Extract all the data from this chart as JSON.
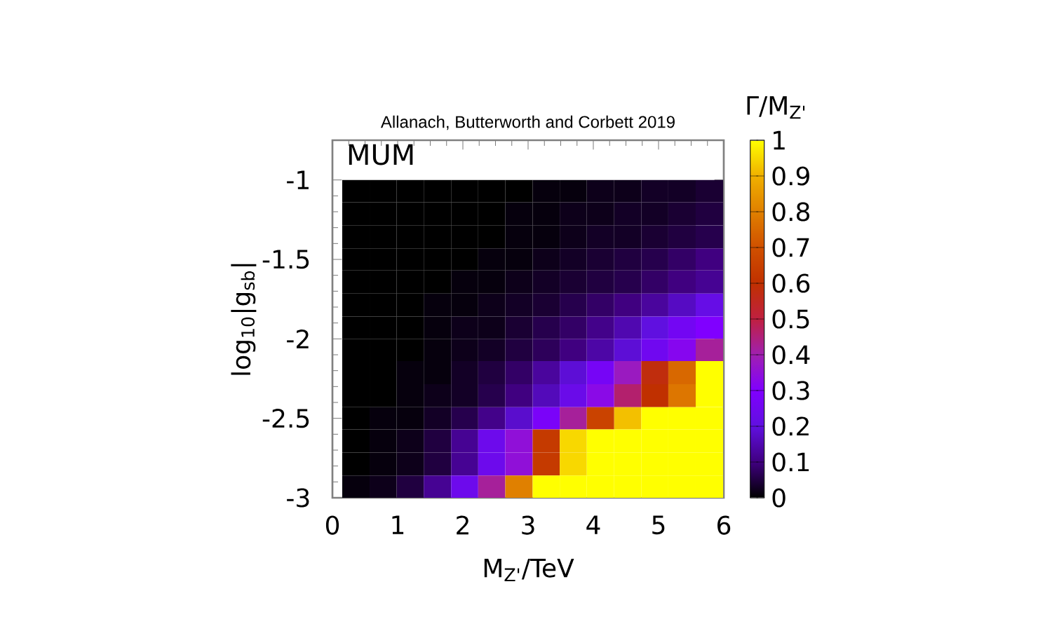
{
  "chart_data": {
    "type": "heatmap",
    "title": "Allanach, Butterworth and Corbett 2019",
    "xlabel": "M$_{Z'}$/TeV",
    "ylabel": "log$_{10}$|g$_{sb}$|",
    "clabel": "Γ/M$_{Z'}$",
    "annotations": [
      "MUM"
    ],
    "x": [
      0.36,
      0.78,
      1.19,
      1.61,
      2.03,
      2.44,
      2.86,
      3.28,
      3.69,
      4.11,
      4.53,
      4.94,
      5.36,
      5.78
    ],
    "y": [
      -1.07,
      -1.21,
      -1.36,
      -1.5,
      -1.64,
      -1.79,
      -1.93,
      -2.07,
      -2.21,
      -2.36,
      -2.5,
      -2.64,
      -2.79,
      -2.93
    ],
    "cells": [
      [
        0,
        0,
        0,
        0,
        0,
        0,
        0,
        0.01,
        0.01,
        0.02,
        0.02,
        0.03,
        0.03,
        0.04
      ],
      [
        0,
        0,
        0,
        0,
        0,
        0,
        0.01,
        0.01,
        0.02,
        0.02,
        0.03,
        0.03,
        0.04,
        0.05
      ],
      [
        0,
        0,
        0,
        0,
        0,
        0,
        0.01,
        0.01,
        0.02,
        0.03,
        0.03,
        0.04,
        0.05,
        0.06
      ],
      [
        0,
        0,
        0,
        0,
        0,
        0.01,
        0.01,
        0.02,
        0.03,
        0.04,
        0.05,
        0.06,
        0.08,
        0.1
      ],
      [
        0,
        0,
        0,
        0,
        0.01,
        0.01,
        0.02,
        0.03,
        0.04,
        0.05,
        0.06,
        0.08,
        0.1,
        0.12
      ],
      [
        0,
        0,
        0,
        0.01,
        0.01,
        0.02,
        0.03,
        0.04,
        0.06,
        0.08,
        0.1,
        0.13,
        0.17,
        0.22
      ],
      [
        0,
        0,
        0,
        0.01,
        0.02,
        0.02,
        0.04,
        0.06,
        0.08,
        0.11,
        0.15,
        0.2,
        0.26,
        0.3
      ],
      [
        0,
        0,
        0,
        0.01,
        0.02,
        0.03,
        0.05,
        0.07,
        0.1,
        0.14,
        0.19,
        0.25,
        0.32,
        0.42
      ],
      [
        0,
        0,
        0.01,
        0.01,
        0.03,
        0.05,
        0.08,
        0.13,
        0.19,
        0.27,
        0.38,
        0.58,
        0.75,
        1
      ],
      [
        0,
        0,
        0.01,
        0.02,
        0.03,
        0.06,
        0.1,
        0.16,
        0.23,
        0.33,
        0.46,
        0.6,
        0.78,
        1
      ],
      [
        0,
        0.01,
        0.01,
        0.03,
        0.06,
        0.11,
        0.18,
        0.28,
        0.42,
        0.66,
        0.92,
        1,
        1,
        1
      ],
      [
        0,
        0.01,
        0.02,
        0.05,
        0.12,
        0.24,
        0.35,
        0.63,
        0.95,
        1,
        1,
        1,
        1,
        1
      ],
      [
        0,
        0.01,
        0.02,
        0.05,
        0.12,
        0.24,
        0.35,
        0.63,
        0.95,
        1,
        1,
        1,
        1,
        1
      ],
      [
        0.01,
        0.02,
        0.05,
        0.12,
        0.24,
        0.42,
        0.8,
        1,
        1,
        1,
        1,
        1,
        1,
        1
      ]
    ],
    "colors": [
      "#000000",
      "#400080",
      "#6010e0",
      "#8000ff",
      "#a020b0",
      "#c02040",
      "#c03000",
      "#d05000",
      "#e08000",
      "#f0b000",
      "#ffff00"
    ],
    "xlim": [
      0,
      6
    ],
    "xticks": [
      0,
      1,
      2,
      3,
      4,
      5,
      6
    ],
    "ylim": [
      -3,
      -0.75
    ],
    "yticks": [
      -3,
      -2.5,
      -2,
      -1.5,
      -1
    ],
    "clim": [
      0,
      1
    ],
    "cticks": [
      0,
      0.1,
      0.2,
      0.3,
      0.4,
      0.5,
      0.6,
      0.7,
      0.8,
      0.9,
      1
    ]
  }
}
